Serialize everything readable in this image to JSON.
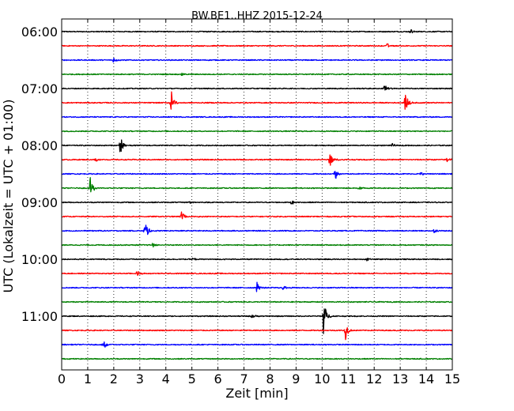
{
  "chart_data": {
    "type": "line",
    "title": "BW.BE1..HHZ 2015-12-24",
    "xlabel": "Zeit  [min]",
    "ylabel": "UTC (Lokalzeit = UTC + 01:00)",
    "xlim": [
      0,
      15
    ],
    "x_ticks": [
      "0",
      "1",
      "2",
      "3",
      "4",
      "5",
      "6",
      "7",
      "8",
      "9",
      "10",
      "11",
      "12",
      "13",
      "14",
      "15"
    ],
    "y_tick_labels": [
      "06:00",
      "07:00",
      "08:00",
      "09:00",
      "10:00",
      "11:00"
    ],
    "grid": "vertical dotted",
    "colors": [
      "#000000",
      "#ff0000",
      "#0000ff",
      "#008000"
    ],
    "trace_interval_min": 15,
    "traces": [
      {
        "start": "06:00",
        "color": "#000000",
        "events": [
          {
            "t": 13.4,
            "amp": 0.25
          }
        ]
      },
      {
        "start": "06:15",
        "color": "#ff0000",
        "events": [
          {
            "t": 12.5,
            "amp": 0.2
          }
        ]
      },
      {
        "start": "06:30",
        "color": "#0000ff",
        "events": [
          {
            "t": 2.0,
            "amp": 0.25
          }
        ]
      },
      {
        "start": "06:45",
        "color": "#008000",
        "events": [
          {
            "t": 4.6,
            "amp": 0.15
          }
        ]
      },
      {
        "start": "07:00",
        "color": "#000000",
        "events": [
          {
            "t": 12.4,
            "amp": 0.45
          }
        ]
      },
      {
        "start": "07:15",
        "color": "#ff0000",
        "events": [
          {
            "t": 4.2,
            "amp": 1.2
          },
          {
            "t": 13.2,
            "amp": 0.9
          }
        ]
      },
      {
        "start": "07:30",
        "color": "#0000ff",
        "events": []
      },
      {
        "start": "07:45",
        "color": "#008000",
        "events": []
      },
      {
        "start": "08:00",
        "color": "#000000",
        "events": [
          {
            "t": 2.25,
            "amp": 1.1
          },
          {
            "t": 12.7,
            "amp": 0.15
          }
        ]
      },
      {
        "start": "08:15",
        "color": "#ff0000",
        "events": [
          {
            "t": 1.3,
            "amp": 0.2
          },
          {
            "t": 10.3,
            "amp": 0.7
          },
          {
            "t": 14.8,
            "amp": 0.25
          }
        ]
      },
      {
        "start": "08:30",
        "color": "#0000ff",
        "events": [
          {
            "t": 10.5,
            "amp": 0.5
          },
          {
            "t": 13.8,
            "amp": 0.15
          }
        ]
      },
      {
        "start": "08:45",
        "color": "#008000",
        "events": [
          {
            "t": 1.1,
            "amp": 0.9
          },
          {
            "t": 11.4,
            "amp": 0.2
          }
        ]
      },
      {
        "start": "09:00",
        "color": "#000000",
        "events": [
          {
            "t": 4.9,
            "amp": 0.15
          },
          {
            "t": 8.8,
            "amp": 0.25
          }
        ]
      },
      {
        "start": "09:15",
        "color": "#ff0000",
        "events": [
          {
            "t": 4.6,
            "amp": 0.45
          }
        ]
      },
      {
        "start": "09:30",
        "color": "#0000ff",
        "events": [
          {
            "t": 3.2,
            "amp": 1.0
          },
          {
            "t": 14.3,
            "amp": 0.15
          }
        ]
      },
      {
        "start": "09:45",
        "color": "#008000",
        "events": [
          {
            "t": 3.5,
            "amp": 0.2
          }
        ]
      },
      {
        "start": "10:00",
        "color": "#000000",
        "events": [
          {
            "t": 5.0,
            "amp": 0.15
          },
          {
            "t": 11.7,
            "amp": 0.2
          }
        ]
      },
      {
        "start": "10:15",
        "color": "#ff0000",
        "events": [
          {
            "t": 2.9,
            "amp": 0.25
          }
        ]
      },
      {
        "start": "10:30",
        "color": "#0000ff",
        "events": [
          {
            "t": 7.5,
            "amp": 0.5
          },
          {
            "t": 8.5,
            "amp": 0.25
          }
        ]
      },
      {
        "start": "10:45",
        "color": "#008000",
        "events": []
      },
      {
        "start": "11:00",
        "color": "#000000",
        "events": [
          {
            "t": 7.3,
            "amp": 0.2
          },
          {
            "t": 10.05,
            "amp": 1.6
          }
        ]
      },
      {
        "start": "11:15",
        "color": "#ff0000",
        "events": [
          {
            "t": 10.9,
            "amp": 0.8
          }
        ]
      },
      {
        "start": "11:30",
        "color": "#0000ff",
        "events": [
          {
            "t": 1.6,
            "amp": 0.65
          }
        ]
      },
      {
        "start": "11:45",
        "color": "#008000",
        "events": []
      }
    ]
  }
}
